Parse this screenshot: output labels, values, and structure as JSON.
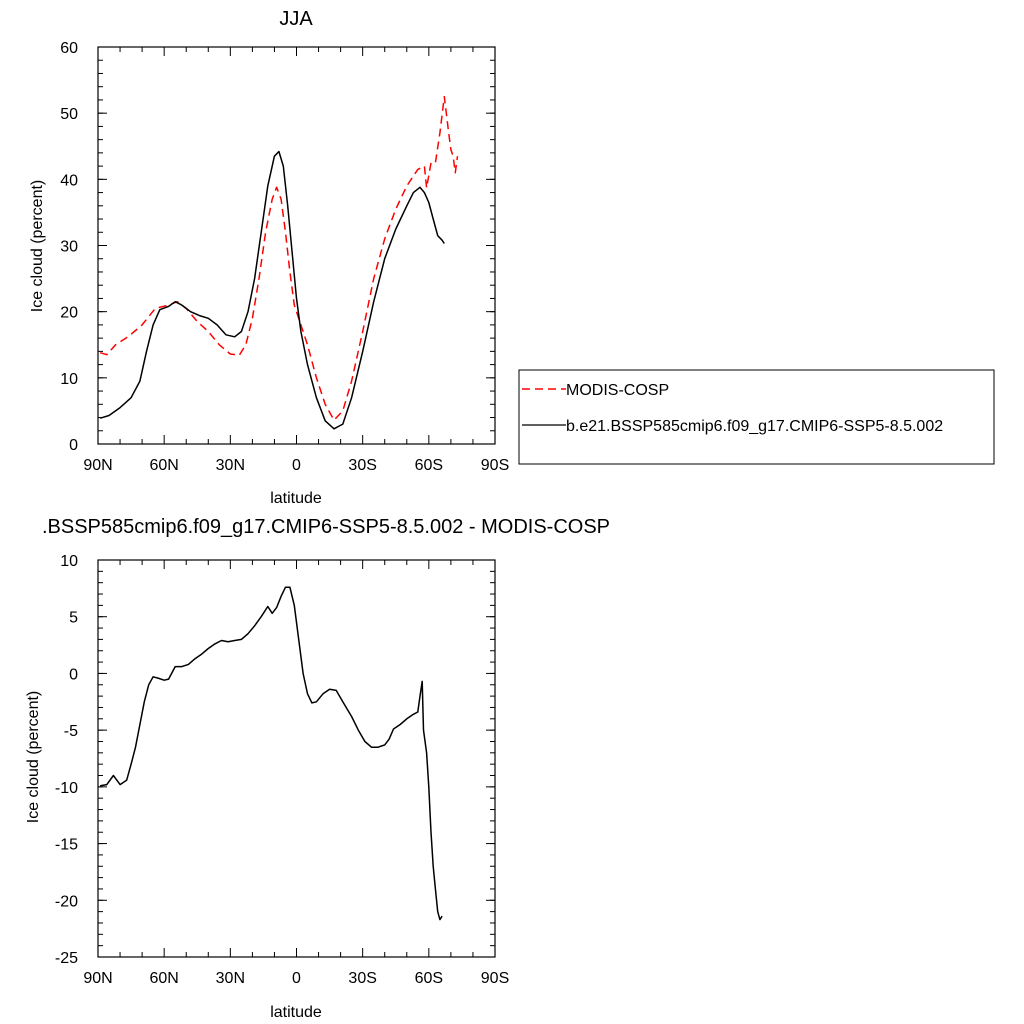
{
  "chart_data": [
    {
      "type": "line",
      "title": "JJA",
      "xlabel": "latitude",
      "ylabel": "Ice cloud (percent)",
      "xlim": [
        -90,
        90
      ],
      "ylim": [
        0,
        60
      ],
      "x_ticks": [
        -90,
        -60,
        -30,
        0,
        30,
        60,
        90
      ],
      "x_tick_labels": [
        "90N",
        "60N",
        "30N",
        "0",
        "30S",
        "60S",
        "90S"
      ],
      "y_ticks": [
        0,
        10,
        20,
        30,
        40,
        50,
        60
      ],
      "y_tick_labels": [
        "0",
        "10",
        "20",
        "30",
        "40",
        "50",
        "60"
      ],
      "legend_position": "right",
      "series": [
        {
          "name": "MODIS-COSP",
          "color": "#ff0000",
          "dash": "dashed",
          "points": [
            [
              -89,
              13.8
            ],
            [
              -86,
              13.5
            ],
            [
              -82,
              15.0
            ],
            [
              -76,
              16.3
            ],
            [
              -70,
              18.0
            ],
            [
              -64,
              20.5
            ],
            [
              -58,
              21.0
            ],
            [
              -54,
              21.5
            ],
            [
              -50,
              20.5
            ],
            [
              -45,
              18.5
            ],
            [
              -40,
              17.0
            ],
            [
              -35,
              15.0
            ],
            [
              -30,
              13.6
            ],
            [
              -26,
              13.4
            ],
            [
              -23,
              15.0
            ],
            [
              -20,
              19.0
            ],
            [
              -17,
              25.0
            ],
            [
              -14,
              32.0
            ],
            [
              -11,
              37.0
            ],
            [
              -9,
              38.8
            ],
            [
              -7,
              37.0
            ],
            [
              -5,
              32.0
            ],
            [
              -3,
              26.0
            ],
            [
              -1,
              21.0
            ],
            [
              2,
              18.0
            ],
            [
              5,
              15.0
            ],
            [
              9,
              10.0
            ],
            [
              13,
              6.0
            ],
            [
              17,
              3.6
            ],
            [
              21,
              5.0
            ],
            [
              25,
              9.5
            ],
            [
              30,
              17.0
            ],
            [
              35,
              25.0
            ],
            [
              40,
              31.0
            ],
            [
              45,
              35.5
            ],
            [
              50,
              39.0
            ],
            [
              55,
              41.5
            ],
            [
              58,
              42.0
            ],
            [
              59,
              38.7
            ],
            [
              61,
              42.5
            ],
            [
              63,
              42.5
            ],
            [
              65,
              47.0
            ],
            [
              67,
              52.5
            ],
            [
              69,
              47.0
            ],
            [
              70,
              44.5
            ],
            [
              71,
              43.5
            ],
            [
              72,
              41.0
            ],
            [
              73,
              43.5
            ]
          ]
        },
        {
          "name": "b.e21.BSSP585cmip6.f09_g17.CMIP6-SSP5-8.5.002",
          "color": "#000000",
          "dash": "solid",
          "points": [
            [
              -89,
              3.9
            ],
            [
              -85,
              4.3
            ],
            [
              -80,
              5.5
            ],
            [
              -75,
              7.0
            ],
            [
              -71,
              9.5
            ],
            [
              -68,
              14.0
            ],
            [
              -65,
              18.0
            ],
            [
              -62,
              20.3
            ],
            [
              -58,
              20.8
            ],
            [
              -55,
              21.5
            ],
            [
              -52,
              21.0
            ],
            [
              -48,
              20.0
            ],
            [
              -44,
              19.4
            ],
            [
              -40,
              19.0
            ],
            [
              -36,
              18.0
            ],
            [
              -32,
              16.5
            ],
            [
              -28,
              16.2
            ],
            [
              -25,
              17.0
            ],
            [
              -22,
              20.0
            ],
            [
              -19,
              25.0
            ],
            [
              -16,
              32.0
            ],
            [
              -13,
              39.0
            ],
            [
              -10,
              43.5
            ],
            [
              -8,
              44.2
            ],
            [
              -6,
              42.0
            ],
            [
              -4,
              36.0
            ],
            [
              -2,
              29.0
            ],
            [
              0,
              22.0
            ],
            [
              2,
              17.0
            ],
            [
              5,
              12.0
            ],
            [
              9,
              7.0
            ],
            [
              13,
              3.5
            ],
            [
              17,
              2.3
            ],
            [
              21,
              3.0
            ],
            [
              25,
              7.0
            ],
            [
              30,
              14.0
            ],
            [
              35,
              21.5
            ],
            [
              40,
              28.0
            ],
            [
              45,
              32.5
            ],
            [
              50,
              36.0
            ],
            [
              53,
              38.0
            ],
            [
              56,
              38.8
            ],
            [
              58,
              38.0
            ],
            [
              60,
              36.5
            ],
            [
              62,
              34.0
            ],
            [
              64,
              31.5
            ],
            [
              66,
              30.8
            ],
            [
              67,
              30.3
            ]
          ]
        }
      ]
    },
    {
      "type": "line",
      "title": ".BSSP585cmip6.f09_g17.CMIP6-SSP5-8.5.002 - MODIS-COSP",
      "xlabel": "latitude",
      "ylabel": "Ice cloud (percent)",
      "xlim": [
        -90,
        90
      ],
      "ylim": [
        -25,
        10
      ],
      "x_ticks": [
        -90,
        -60,
        -30,
        0,
        30,
        60,
        90
      ],
      "x_tick_labels": [
        "90N",
        "60N",
        "30N",
        "0",
        "30S",
        "60S",
        "90S"
      ],
      "y_ticks": [
        -25,
        -20,
        -15,
        -10,
        -5,
        0,
        5,
        10
      ],
      "y_tick_labels": [
        "-25",
        "-20",
        "-15",
        "-10",
        "-5",
        "0",
        "5",
        "10"
      ],
      "series": [
        {
          "color": "#000000",
          "dash": "solid",
          "points": [
            [
              -89,
              -9.9
            ],
            [
              -86,
              -9.8
            ],
            [
              -83,
              -9.0
            ],
            [
              -80,
              -9.8
            ],
            [
              -77,
              -9.4
            ],
            [
              -75,
              -8.0
            ],
            [
              -73,
              -6.5
            ],
            [
              -71,
              -4.5
            ],
            [
              -69,
              -2.5
            ],
            [
              -67,
              -1.0
            ],
            [
              -65,
              -0.3
            ],
            [
              -63,
              -0.4
            ],
            [
              -60,
              -0.6
            ],
            [
              -58,
              -0.5
            ],
            [
              -55,
              0.6
            ],
            [
              -52,
              0.6
            ],
            [
              -49,
              0.8
            ],
            [
              -46,
              1.3
            ],
            [
              -43,
              1.7
            ],
            [
              -40,
              2.2
            ],
            [
              -37,
              2.6
            ],
            [
              -34,
              2.9
            ],
            [
              -31,
              2.8
            ],
            [
              -28,
              2.9
            ],
            [
              -25,
              3.0
            ],
            [
              -22,
              3.5
            ],
            [
              -19,
              4.2
            ],
            [
              -16,
              5.0
            ],
            [
              -13,
              5.9
            ],
            [
              -11,
              5.3
            ],
            [
              -9,
              5.8
            ],
            [
              -7,
              6.8
            ],
            [
              -5,
              7.6
            ],
            [
              -3,
              7.6
            ],
            [
              -1,
              6.0
            ],
            [
              1,
              3.0
            ],
            [
              3,
              0.0
            ],
            [
              5,
              -1.8
            ],
            [
              7,
              -2.6
            ],
            [
              9,
              -2.5
            ],
            [
              12,
              -1.8
            ],
            [
              15,
              -1.4
            ],
            [
              18,
              -1.5
            ],
            [
              21,
              -2.5
            ],
            [
              25,
              -3.8
            ],
            [
              28,
              -5.0
            ],
            [
              31,
              -6.0
            ],
            [
              34,
              -6.5
            ],
            [
              37,
              -6.5
            ],
            [
              40,
              -6.3
            ],
            [
              42,
              -5.8
            ],
            [
              44,
              -4.9
            ],
            [
              47,
              -4.5
            ],
            [
              50,
              -4.0
            ],
            [
              53,
              -3.6
            ],
            [
              55,
              -3.4
            ],
            [
              56,
              -2.0
            ],
            [
              57,
              -0.7
            ],
            [
              57.6,
              -5.0
            ],
            [
              59,
              -7.0
            ],
            [
              60,
              -10.0
            ],
            [
              61,
              -14.0
            ],
            [
              62,
              -17.0
            ],
            [
              63,
              -19.0
            ],
            [
              64,
              -21.0
            ],
            [
              65,
              -21.7
            ],
            [
              66,
              -21.4
            ]
          ]
        }
      ]
    }
  ]
}
